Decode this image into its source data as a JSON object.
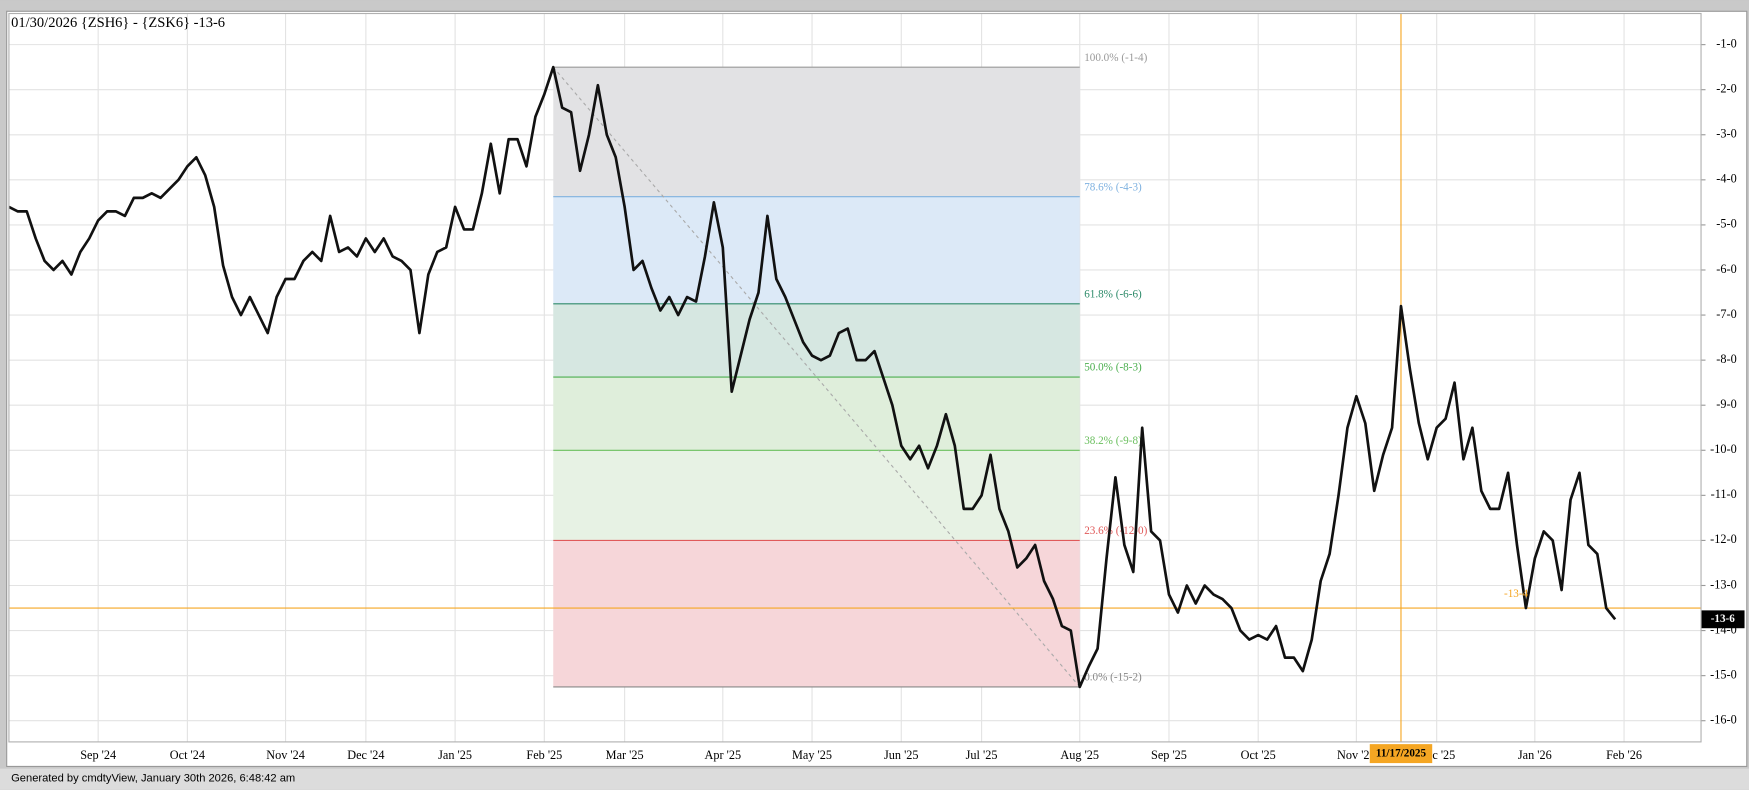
{
  "chart_data": {
    "type": "line",
    "title": "01/30/2026 {ZSH6} - {ZSK6} -13-6",
    "footer": "Generated by cmdtyView, January 30th 2026, 6:48:42 am",
    "color": "#111111",
    "grid": true,
    "categories": [
      null,
      null,
      null,
      null,
      null,
      null,
      null,
      null,
      null,
      null,
      "Sep '24",
      null,
      null,
      null,
      null,
      null,
      null,
      null,
      null,
      null,
      "Oct '24",
      null,
      null,
      null,
      null,
      null,
      null,
      null,
      null,
      null,
      null,
      "Nov '24",
      null,
      null,
      null,
      null,
      null,
      null,
      null,
      null,
      "Dec '24",
      null,
      null,
      null,
      null,
      null,
      null,
      null,
      null,
      null,
      "Jan '25",
      null,
      null,
      null,
      null,
      null,
      null,
      null,
      null,
      null,
      "Feb '25",
      null,
      null,
      null,
      null,
      null,
      null,
      null,
      null,
      "Mar '25",
      null,
      null,
      null,
      null,
      null,
      null,
      null,
      null,
      null,
      null,
      "Apr '25",
      null,
      null,
      null,
      null,
      null,
      null,
      null,
      null,
      null,
      "May '25",
      null,
      null,
      null,
      null,
      null,
      null,
      null,
      null,
      null,
      "Jun '25",
      null,
      null,
      null,
      null,
      null,
      null,
      null,
      null,
      "Jul '25",
      null,
      null,
      null,
      null,
      null,
      null,
      null,
      null,
      null,
      null,
      "Aug '25",
      null,
      null,
      null,
      null,
      null,
      null,
      null,
      null,
      null,
      "Sep '25",
      null,
      null,
      null,
      null,
      null,
      null,
      null,
      null,
      null,
      "Oct '25",
      null,
      null,
      null,
      null,
      null,
      null,
      null,
      null,
      null,
      null,
      "Nov '25",
      null,
      null,
      null,
      null,
      null,
      null,
      null,
      null,
      "Dec '25",
      null,
      null,
      null,
      null,
      null,
      null,
      null,
      null,
      null,
      null,
      "Jan '26",
      null,
      null,
      null,
      null,
      null,
      null,
      null,
      null,
      null,
      "Feb '26"
    ],
    "values": [
      -4.6,
      -4.7,
      -4.7,
      -5.3,
      -5.8,
      -6.0,
      -5.8,
      -6.1,
      -5.6,
      -5.3,
      -4.9,
      -4.7,
      -4.7,
      -4.8,
      -4.4,
      -4.4,
      -4.3,
      -4.4,
      -4.2,
      -4.0,
      -3.7,
      -3.5,
      -3.9,
      -4.6,
      -5.9,
      -6.6,
      -7.0,
      -6.6,
      -7.0,
      -7.4,
      -6.6,
      -6.2,
      -6.2,
      -5.8,
      -5.6,
      -5.8,
      -4.8,
      -5.6,
      -5.5,
      -5.7,
      -5.3,
      -5.6,
      -5.3,
      -5.7,
      -5.8,
      -6.0,
      -7.4,
      -6.1,
      -5.6,
      -5.5,
      -4.6,
      -5.1,
      -5.1,
      -4.3,
      -3.2,
      -4.3,
      -3.1,
      -3.1,
      -3.7,
      -2.6,
      -2.1,
      -1.5,
      -2.4,
      -2.5,
      -3.8,
      -3.0,
      -1.9,
      -3.0,
      -3.5,
      -4.6,
      -6.0,
      -5.8,
      -6.4,
      -6.9,
      -6.6,
      -7.0,
      -6.6,
      -6.7,
      -5.7,
      -4.5,
      -5.5,
      -8.7,
      -7.9,
      -7.1,
      -6.5,
      -4.8,
      -6.2,
      -6.6,
      -7.1,
      -7.6,
      -7.9,
      -8.0,
      -7.9,
      -7.4,
      -7.3,
      -8.0,
      -8.0,
      -7.8,
      -8.4,
      -9.0,
      -9.9,
      -10.2,
      -9.9,
      -10.4,
      -9.9,
      -9.2,
      -9.9,
      -11.3,
      -11.3,
      -11.0,
      -10.1,
      -11.3,
      -11.8,
      -12.6,
      -12.4,
      -12.1,
      -12.9,
      -13.3,
      -13.9,
      -14.0,
      -15.25,
      -14.8,
      -14.4,
      -12.4,
      -10.6,
      -12.1,
      -12.7,
      -9.5,
      -11.8,
      -12.0,
      -13.2,
      -13.6,
      -13.0,
      -13.4,
      -13.0,
      -13.2,
      -13.3,
      -13.5,
      -14.0,
      -14.2,
      -14.1,
      -14.2,
      -13.9,
      -14.6,
      -14.6,
      -14.9,
      -14.2,
      -12.9,
      -12.3,
      -11.0,
      -9.5,
      -8.8,
      -9.4,
      -10.9,
      -10.1,
      -9.5,
      -6.8,
      -8.2,
      -9.4,
      -10.2,
      -9.5,
      -9.3,
      -8.5,
      -10.2,
      -9.5,
      -10.9,
      -11.3,
      -11.3,
      -10.5,
      -12.1,
      -13.5,
      -12.4,
      -11.8,
      -12.0,
      -13.1,
      -11.1,
      -10.5,
      -12.1,
      -12.3,
      -13.5,
      -13.75,
      null
    ],
    "ylim": [
      -16.47,
      -0.31
    ],
    "yticks": [
      {
        "value": -1,
        "label": "-1-0"
      },
      {
        "value": -2,
        "label": "-2-0"
      },
      {
        "value": -3,
        "label": "-3-0"
      },
      {
        "value": -4,
        "label": "-4-0"
      },
      {
        "value": -5,
        "label": "-5-0"
      },
      {
        "value": -6,
        "label": "-6-0"
      },
      {
        "value": -7,
        "label": "-7-0"
      },
      {
        "value": -8,
        "label": "-8-0"
      },
      {
        "value": -9,
        "label": "-9-0"
      },
      {
        "value": -10,
        "label": "-10-0"
      },
      {
        "value": -11,
        "label": "-11-0"
      },
      {
        "value": -12,
        "label": "-12-0"
      },
      {
        "value": -13,
        "label": "-13-0"
      },
      {
        "value": -14,
        "label": "-14-0"
      },
      {
        "value": -15,
        "label": "-15-0"
      },
      {
        "value": -16,
        "label": "-16-0"
      }
    ],
    "fib_levels": [
      {
        "value": -1.5,
        "label": "100.0% (-1-4)",
        "color": "#999999",
        "fill": "#e2e2e4"
      },
      {
        "value": -4.375,
        "label": "78.6% (-4-3)",
        "color": "#7fb2e0",
        "fill": "#dce9f7"
      },
      {
        "value": -6.75,
        "label": "61.8% (-6-6)",
        "color": "#2e8b6a",
        "fill": "#d6e7e1"
      },
      {
        "value": -8.375,
        "label": "50.0% (-8-3)",
        "color": "#4caf50",
        "fill": "#dfeedb"
      },
      {
        "value": -10,
        "label": "38.2% (-9-8)",
        "color": "#6abf5e",
        "fill": "#e7f2e4"
      },
      {
        "value": -12,
        "label": "23.6% (-12-0)",
        "color": "#e05a5a",
        "fill": "#f6d6d9"
      },
      {
        "value": -15.25,
        "label": "0.0% (-15-2)",
        "color": "#888888"
      }
    ],
    "ref_line": {
      "value": -13.5,
      "label": "-13-4",
      "color": "#f5a623"
    },
    "last_label": {
      "value": -13.75,
      "label": "-13-6"
    },
    "marker": {
      "label": "11/17/2025",
      "color": "#f5a623"
    }
  }
}
